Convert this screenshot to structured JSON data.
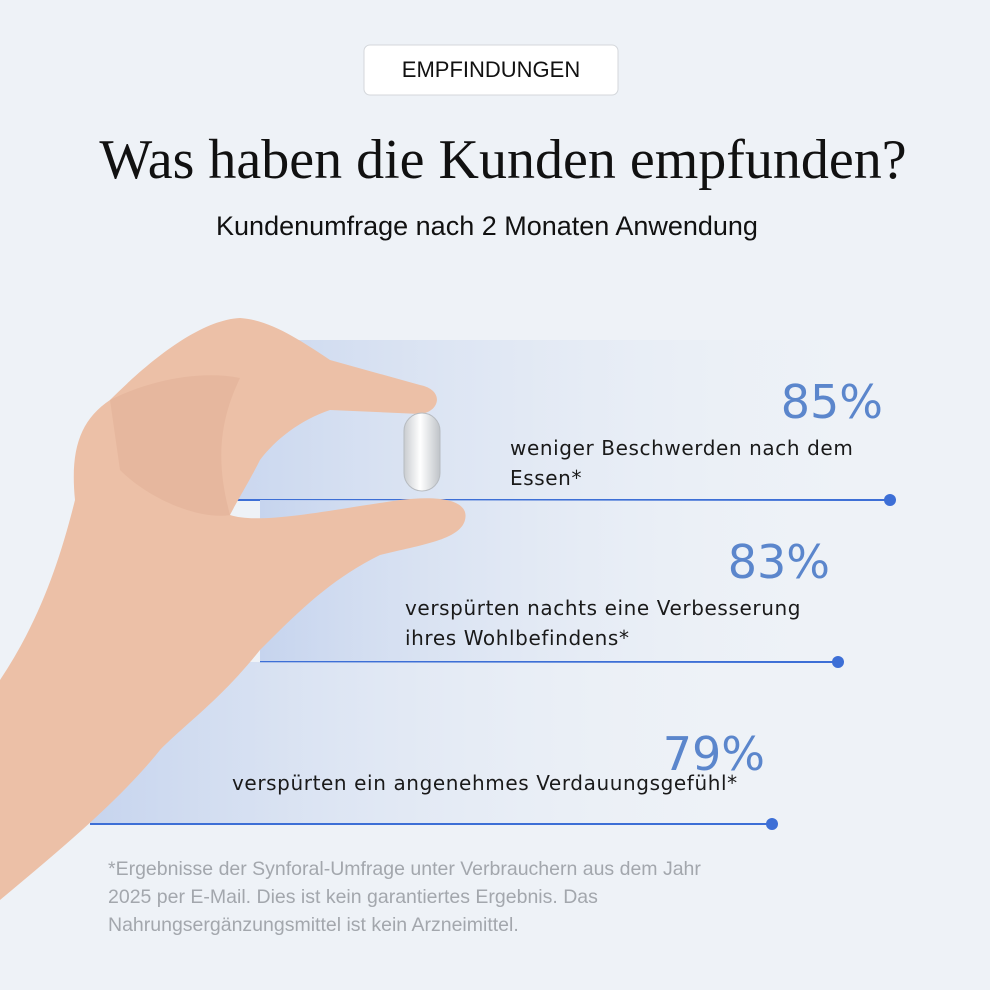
{
  "badge": "EMPFINDUNGEN",
  "title": "Was haben die Kunden empfunden?",
  "subtitle": "Kundenumfrage nach 2 Monaten Anwendung",
  "stats": [
    {
      "value": "85%",
      "label_lines": [
        "weniger Beschwerden nach dem",
        "Essen*"
      ]
    },
    {
      "value": "83%",
      "label_lines": [
        "verspürten nachts eine Verbesserung",
        "ihres Wohlbefindens*"
      ]
    },
    {
      "value": "79%",
      "label_lines": [
        "verspürten ein angenehmes Verdauungsgefühl*"
      ]
    }
  ],
  "footnote_lines": [
    "*Ergebnisse der Synforal-Umfrage unter Verbrauchern aus dem Jahr",
    "2025 per E-Mail. Dies ist kein garantiertes Ergebnis. Das",
    "Nahrungsergänzungsmittel ist kein Arzneimittel."
  ]
}
